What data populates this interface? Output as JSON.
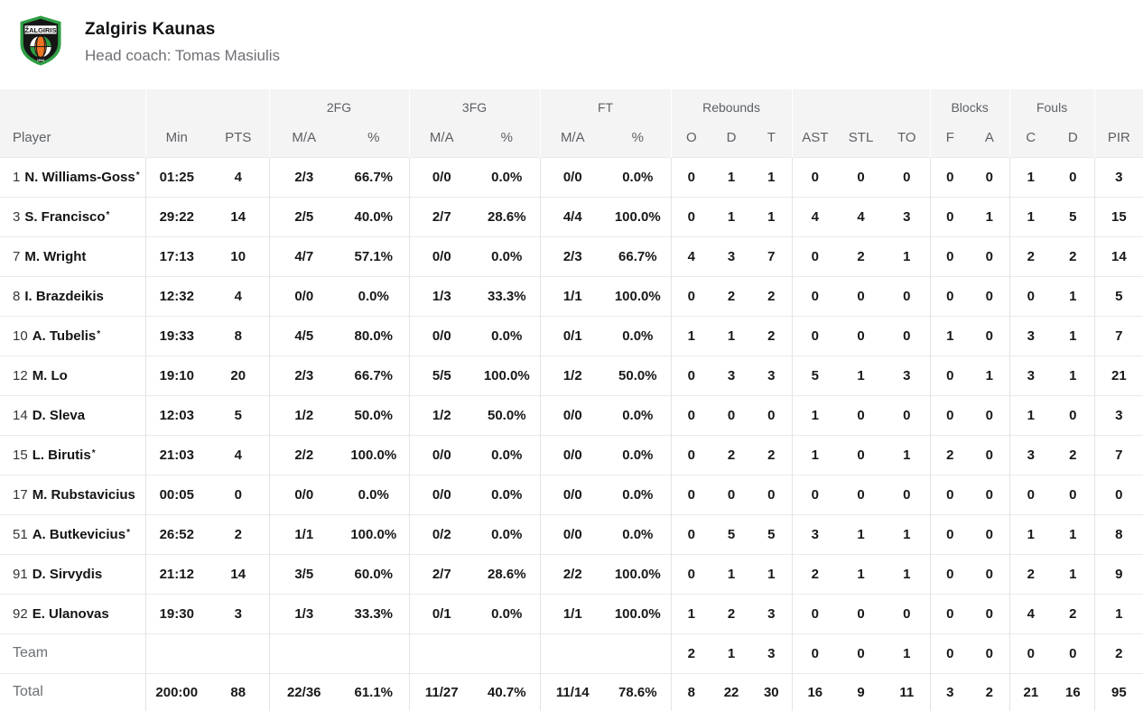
{
  "team": {
    "name": "Zalgiris Kaunas",
    "coach": "Head coach: Tomas Masiulis",
    "logo_text": "ŽALGIRIS",
    "logo_year": "1944",
    "logo_green": "#2f9e44",
    "logo_orange": "#ee7623"
  },
  "table": {
    "groups": [
      "2FG",
      "3FG",
      "FT",
      "Rebounds",
      "Blocks",
      "Fouls"
    ],
    "columns": [
      "Player",
      "Min",
      "PTS",
      "M/A",
      "%",
      "M/A",
      "%",
      "M/A",
      "%",
      "O",
      "D",
      "T",
      "AST",
      "STL",
      "TO",
      "F",
      "A",
      "C",
      "D",
      "PIR"
    ],
    "starter_mark": "*",
    "players": [
      {
        "num": "1",
        "name": "N. Williams-Goss",
        "starter": true,
        "stats": [
          "01:25",
          "4",
          "2/3",
          "66.7%",
          "0/0",
          "0.0%",
          "0/0",
          "0.0%",
          "0",
          "1",
          "1",
          "0",
          "0",
          "0",
          "0",
          "0",
          "1",
          "0",
          "3"
        ]
      },
      {
        "num": "3",
        "name": "S. Francisco",
        "starter": true,
        "stats": [
          "29:22",
          "14",
          "2/5",
          "40.0%",
          "2/7",
          "28.6%",
          "4/4",
          "100.0%",
          "0",
          "1",
          "1",
          "4",
          "4",
          "3",
          "0",
          "1",
          "1",
          "5",
          "15"
        ]
      },
      {
        "num": "7",
        "name": "M. Wright",
        "starter": false,
        "stats": [
          "17:13",
          "10",
          "4/7",
          "57.1%",
          "0/0",
          "0.0%",
          "2/3",
          "66.7%",
          "4",
          "3",
          "7",
          "0",
          "2",
          "1",
          "0",
          "0",
          "2",
          "2",
          "14"
        ]
      },
      {
        "num": "8",
        "name": "I. Brazdeikis",
        "starter": false,
        "stats": [
          "12:32",
          "4",
          "0/0",
          "0.0%",
          "1/3",
          "33.3%",
          "1/1",
          "100.0%",
          "0",
          "2",
          "2",
          "0",
          "0",
          "0",
          "0",
          "0",
          "0",
          "1",
          "5"
        ]
      },
      {
        "num": "10",
        "name": "A. Tubelis",
        "starter": true,
        "stats": [
          "19:33",
          "8",
          "4/5",
          "80.0%",
          "0/0",
          "0.0%",
          "0/1",
          "0.0%",
          "1",
          "1",
          "2",
          "0",
          "0",
          "0",
          "1",
          "0",
          "3",
          "1",
          "7"
        ]
      },
      {
        "num": "12",
        "name": "M. Lo",
        "starter": false,
        "stats": [
          "19:10",
          "20",
          "2/3",
          "66.7%",
          "5/5",
          "100.0%",
          "1/2",
          "50.0%",
          "0",
          "3",
          "3",
          "5",
          "1",
          "3",
          "0",
          "1",
          "3",
          "1",
          "21"
        ]
      },
      {
        "num": "14",
        "name": "D. Sleva",
        "starter": false,
        "stats": [
          "12:03",
          "5",
          "1/2",
          "50.0%",
          "1/2",
          "50.0%",
          "0/0",
          "0.0%",
          "0",
          "0",
          "0",
          "1",
          "0",
          "0",
          "0",
          "0",
          "1",
          "0",
          "3"
        ]
      },
      {
        "num": "15",
        "name": "L. Birutis",
        "starter": true,
        "stats": [
          "21:03",
          "4",
          "2/2",
          "100.0%",
          "0/0",
          "0.0%",
          "0/0",
          "0.0%",
          "0",
          "2",
          "2",
          "1",
          "0",
          "1",
          "2",
          "0",
          "3",
          "2",
          "7"
        ]
      },
      {
        "num": "17",
        "name": "M. Rubstavicius",
        "starter": false,
        "stats": [
          "00:05",
          "0",
          "0/0",
          "0.0%",
          "0/0",
          "0.0%",
          "0/0",
          "0.0%",
          "0",
          "0",
          "0",
          "0",
          "0",
          "0",
          "0",
          "0",
          "0",
          "0",
          "0"
        ]
      },
      {
        "num": "51",
        "name": "A. Butkevicius",
        "starter": true,
        "stats": [
          "26:52",
          "2",
          "1/1",
          "100.0%",
          "0/2",
          "0.0%",
          "0/0",
          "0.0%",
          "0",
          "5",
          "5",
          "3",
          "1",
          "1",
          "0",
          "0",
          "1",
          "1",
          "8"
        ]
      },
      {
        "num": "91",
        "name": "D. Sirvydis",
        "starter": false,
        "stats": [
          "21:12",
          "14",
          "3/5",
          "60.0%",
          "2/7",
          "28.6%",
          "2/2",
          "100.0%",
          "0",
          "1",
          "1",
          "2",
          "1",
          "1",
          "0",
          "0",
          "2",
          "1",
          "9"
        ]
      },
      {
        "num": "92",
        "name": "E. Ulanovas",
        "starter": false,
        "stats": [
          "19:30",
          "3",
          "1/3",
          "33.3%",
          "0/1",
          "0.0%",
          "1/1",
          "100.0%",
          "1",
          "2",
          "3",
          "0",
          "0",
          "0",
          "0",
          "0",
          "4",
          "2",
          "1"
        ]
      }
    ],
    "team_row": {
      "label": "Team",
      "stats": [
        "",
        "",
        "",
        "",
        "",
        "",
        "",
        "",
        "2",
        "1",
        "3",
        "0",
        "0",
        "1",
        "0",
        "0",
        "0",
        "0",
        "2"
      ]
    },
    "total_row": {
      "label": "Total",
      "stats": [
        "200:00",
        "88",
        "22/36",
        "61.1%",
        "11/27",
        "40.7%",
        "11/14",
        "78.6%",
        "8",
        "22",
        "30",
        "16",
        "9",
        "11",
        "3",
        "2",
        "21",
        "16",
        "95"
      ]
    }
  }
}
